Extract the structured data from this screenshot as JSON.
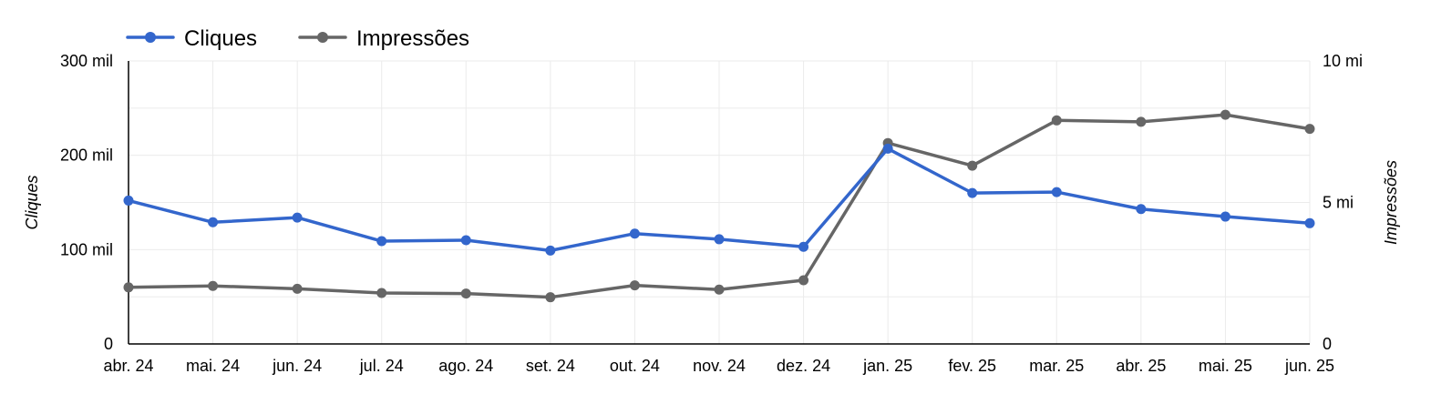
{
  "chart_data": {
    "type": "line",
    "categories": [
      "abr. 24",
      "mai. 24",
      "jun. 24",
      "jul. 24",
      "ago. 24",
      "set. 24",
      "out. 24",
      "nov. 24",
      "dez. 24",
      "jan. 25",
      "fev. 25",
      "mar. 25",
      "abr. 25",
      "mai. 25",
      "jun. 25"
    ],
    "series": [
      {
        "name": "Cliques",
        "axis": "left",
        "color": "#3366CC",
        "values": [
          152000,
          129000,
          134000,
          109000,
          110000,
          99000,
          117000,
          111000,
          103000,
          207000,
          160000,
          161000,
          143000,
          135000,
          128000
        ]
      },
      {
        "name": "Impressões",
        "axis": "right",
        "color": "#666666",
        "values": [
          2.0,
          2.05,
          1.95,
          1.8,
          1.78,
          1.65,
          2.07,
          1.92,
          2.25,
          7.1,
          6.3,
          7.9,
          7.85,
          8.1,
          7.6
        ]
      }
    ],
    "y_left": {
      "label": "Cliques",
      "min": 0,
      "max": 300000,
      "ticks": [
        {
          "value": 0,
          "label": "0"
        },
        {
          "value": 100000,
          "label": "100 mil"
        },
        {
          "value": 200000,
          "label": "200 mil"
        },
        {
          "value": 300000,
          "label": "300 mil"
        }
      ]
    },
    "y_right": {
      "label": "Impressões",
      "min": 0,
      "max": 10,
      "ticks": [
        {
          "value": 0,
          "label": "0"
        },
        {
          "value": 5,
          "label": "5 mi"
        },
        {
          "value": 10,
          "label": "10 mi"
        }
      ]
    },
    "grid": true,
    "legend_position": "top-left"
  }
}
